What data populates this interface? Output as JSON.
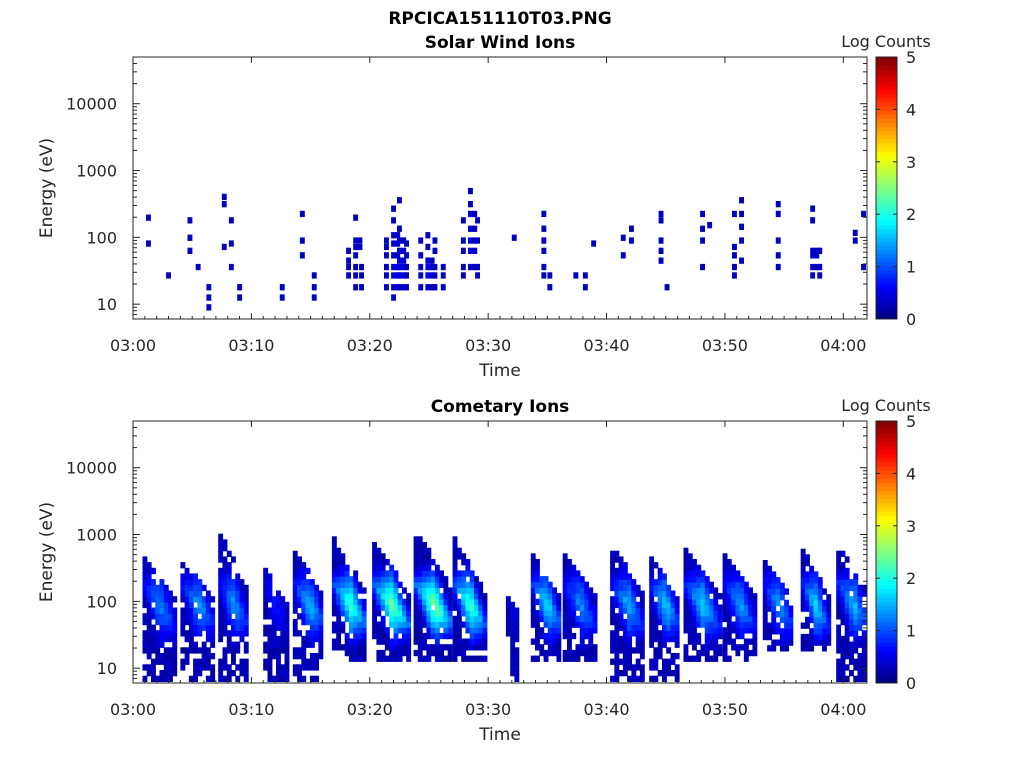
{
  "figure": {
    "title": "RPCICA151110T03.PNG"
  },
  "chart_data": [
    {
      "type": "heatmap",
      "title": "Solar Wind Ions",
      "xlabel": "Time",
      "ylabel": "Energy (eV)",
      "x_ticks": [
        "03:00",
        "03:10",
        "03:20",
        "03:30",
        "03:40",
        "03:50",
        "04:00"
      ],
      "xlim_minutes": [
        0,
        62
      ],
      "y_ticks": [
        10,
        100,
        1000,
        10000
      ],
      "y_scale": "log",
      "ylim": [
        6,
        50000
      ],
      "colorbar": {
        "label": "Log Counts",
        "ticks": [
          0,
          1,
          2,
          3,
          4,
          5
        ],
        "range": [
          0,
          5
        ],
        "colormap": "jet"
      },
      "spectrogram": [
        {
          "t": 1.1,
          "e": [
            220,
            90
          ]
        },
        {
          "t": 2.8,
          "e": [
            30
          ]
        },
        {
          "t": 4.6,
          "e": [
            200,
            110,
            70
          ]
        },
        {
          "t": 5.3,
          "e": [
            40
          ]
        },
        {
          "t": 6.2,
          "e": [
            20,
            14,
            10,
            7
          ]
        },
        {
          "t": 7.5,
          "e": [
            450,
            350,
            80
          ]
        },
        {
          "t": 8.1,
          "e": [
            200,
            90,
            40
          ]
        },
        {
          "t": 8.8,
          "e": [
            20,
            14
          ]
        },
        {
          "t": 12.4,
          "e": [
            20,
            14
          ]
        },
        {
          "t": 14.1,
          "e": [
            250,
            100,
            60
          ]
        },
        {
          "t": 15.1,
          "e": [
            30,
            20,
            14
          ]
        },
        {
          "t": 18.0,
          "e": [
            70,
            50,
            40,
            30
          ]
        },
        {
          "t": 18.6,
          "e": [
            220,
            100,
            80,
            60,
            40,
            30,
            20
          ],
          "c": [
            0.3,
            0.4,
            0.4,
            0.3,
            0.3,
            0.3,
            0.3
          ]
        },
        {
          "t": 19.1,
          "e": [
            40,
            30,
            20
          ]
        },
        {
          "t": 21.2,
          "e": [
            100,
            80,
            60,
            40,
            30,
            20
          ]
        },
        {
          "t": 21.8,
          "e": [
            300,
            200,
            120,
            90,
            60,
            40,
            30,
            20,
            14
          ],
          "c": [
            0.3,
            0.3,
            0.4,
            0.5,
            0.4,
            0.5,
            0.5,
            0.4,
            0.3
          ]
        },
        {
          "t": 22.3,
          "e": [
            400,
            150,
            100,
            70,
            50,
            40,
            30,
            20
          ],
          "c": [
            0.3,
            0.3,
            0.4,
            0.4,
            0.5,
            0.5,
            0.5,
            0.4
          ]
        },
        {
          "t": 22.9,
          "e": [
            90,
            60,
            40,
            30,
            20
          ]
        },
        {
          "t": 24.1,
          "e": [
            100,
            60,
            40,
            30,
            20
          ]
        },
        {
          "t": 24.7,
          "e": [
            120,
            80,
            50,
            40,
            30,
            20
          ],
          "c": [
            0.3,
            0.3,
            0.4,
            0.5,
            0.5,
            0.4
          ]
        },
        {
          "t": 25.3,
          "e": [
            100,
            70,
            40,
            30,
            20
          ]
        },
        {
          "t": 26.0,
          "e": [
            40,
            30,
            20
          ]
        },
        {
          "t": 27.7,
          "e": [
            200,
            100,
            70,
            40,
            30
          ]
        },
        {
          "t": 28.3,
          "e": [
            550,
            350,
            250,
            150,
            100,
            70,
            40
          ],
          "c": [
            0.3,
            0.3,
            0.4,
            0.4,
            0.5,
            0.5,
            0.4
          ]
        },
        {
          "t": 28.9,
          "e": [
            200,
            100,
            40,
            30
          ]
        },
        {
          "t": 32.0,
          "e": [
            110
          ]
        },
        {
          "t": 34.5,
          "e": [
            250,
            150,
            100,
            70,
            40,
            30
          ]
        },
        {
          "t": 35.0,
          "e": [
            30,
            20
          ]
        },
        {
          "t": 37.2,
          "e": [
            30
          ]
        },
        {
          "t": 38.0,
          "e": [
            30,
            20
          ]
        },
        {
          "t": 38.7,
          "e": [
            90
          ]
        },
        {
          "t": 41.2,
          "e": [
            110,
            60
          ]
        },
        {
          "t": 41.9,
          "e": [
            150,
            100
          ]
        },
        {
          "t": 44.4,
          "e": [
            250,
            200,
            100,
            70,
            50
          ]
        },
        {
          "t": 44.9,
          "e": [
            20
          ]
        },
        {
          "t": 47.9,
          "e": [
            250,
            150,
            100,
            40
          ]
        },
        {
          "t": 48.5,
          "e": [
            170
          ]
        },
        {
          "t": 50.6,
          "e": [
            250,
            80,
            60,
            40,
            30
          ]
        },
        {
          "t": 51.2,
          "e": [
            400,
            250,
            160,
            100,
            50
          ]
        },
        {
          "t": 54.3,
          "e": [
            350,
            250,
            100,
            60,
            40
          ]
        },
        {
          "t": 57.2,
          "e": [
            300,
            200,
            70,
            60,
            40,
            30
          ],
          "c": [
            0.3,
            0.3,
            0.4,
            0.4,
            0.4,
            0.3
          ]
        },
        {
          "t": 57.8,
          "e": [
            70,
            40,
            30
          ]
        },
        {
          "t": 60.8,
          "e": [
            130,
            100
          ]
        },
        {
          "t": 61.5,
          "e": [
            250,
            40
          ]
        }
      ]
    },
    {
      "type": "heatmap",
      "title": "Cometary Ions",
      "xlabel": "Time",
      "ylabel": "Energy (eV)",
      "x_ticks": [
        "03:00",
        "03:10",
        "03:20",
        "03:30",
        "03:40",
        "03:50",
        "04:00"
      ],
      "xlim_minutes": [
        0,
        62
      ],
      "y_ticks": [
        10,
        100,
        1000,
        10000
      ],
      "y_scale": "log",
      "ylim": [
        6,
        50000
      ],
      "colorbar": {
        "label": "Log Counts",
        "ticks": [
          0,
          1,
          2,
          3,
          4,
          5
        ],
        "range": [
          0,
          5
        ],
        "colormap": "jet"
      },
      "bursts": [
        {
          "t0": 0.8,
          "t1": 3.4,
          "emax": 500,
          "emin": 7,
          "peak": 1.1
        },
        {
          "t0": 4.0,
          "t1": 6.8,
          "emax": 400,
          "emin": 7,
          "peak": 1.2
        },
        {
          "t0": 7.2,
          "t1": 9.6,
          "emax": 1100,
          "emin": 7,
          "peak": 1.2
        },
        {
          "t0": 11.0,
          "t1": 12.8,
          "emax": 300,
          "emin": 7,
          "peak": 0.5
        },
        {
          "t0": 13.5,
          "t1": 16.0,
          "emax": 600,
          "emin": 7,
          "peak": 1.4
        },
        {
          "t0": 16.8,
          "t1": 19.6,
          "emax": 900,
          "emin": 14,
          "peak": 2.0
        },
        {
          "t0": 20.2,
          "t1": 23.2,
          "emax": 800,
          "emin": 14,
          "peak": 2.3
        },
        {
          "t0": 23.7,
          "t1": 26.8,
          "emax": 1200,
          "emin": 14,
          "peak": 2.4
        },
        {
          "t0": 27.0,
          "t1": 29.6,
          "emax": 900,
          "emin": 14,
          "peak": 2.1
        },
        {
          "t0": 31.5,
          "t1": 32.4,
          "emax": 120,
          "emin": 7,
          "peak": 0.3
        },
        {
          "t0": 33.6,
          "t1": 36.0,
          "emax": 500,
          "emin": 14,
          "peak": 1.6
        },
        {
          "t0": 36.3,
          "t1": 39.0,
          "emax": 500,
          "emin": 14,
          "peak": 1.1
        },
        {
          "t0": 40.3,
          "t1": 43.0,
          "emax": 700,
          "emin": 7,
          "peak": 1.3
        },
        {
          "t0": 43.6,
          "t1": 46.0,
          "emax": 450,
          "emin": 7,
          "peak": 1.5
        },
        {
          "t0": 46.5,
          "t1": 49.4,
          "emax": 700,
          "emin": 14,
          "peak": 1.5
        },
        {
          "t0": 49.8,
          "t1": 52.4,
          "emax": 550,
          "emin": 14,
          "peak": 1.2
        },
        {
          "t0": 53.2,
          "t1": 55.6,
          "emax": 450,
          "emin": 20,
          "peak": 1.2
        },
        {
          "t0": 56.4,
          "t1": 58.6,
          "emax": 650,
          "emin": 20,
          "peak": 1.5
        },
        {
          "t0": 59.4,
          "t1": 62.0,
          "emax": 700,
          "emin": 7,
          "peak": 1.4
        }
      ]
    }
  ]
}
